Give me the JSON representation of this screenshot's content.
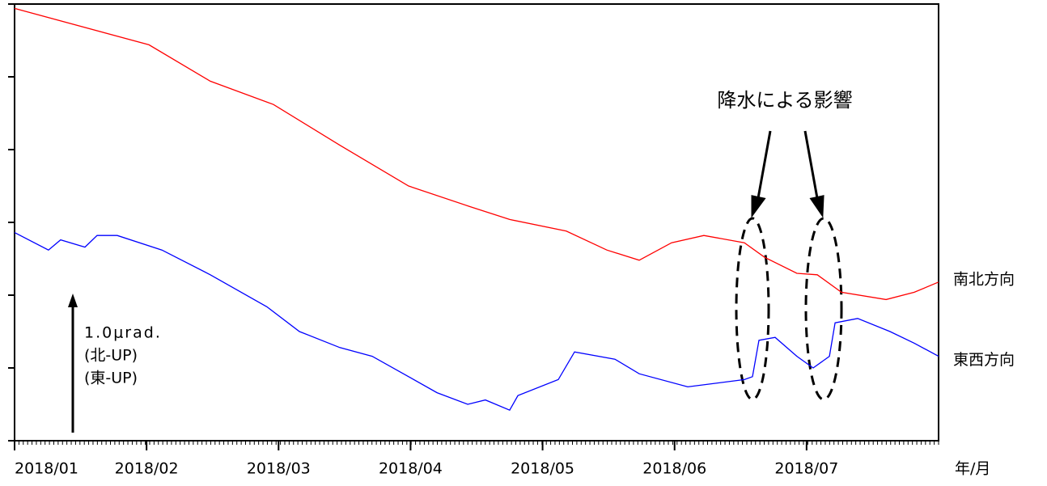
{
  "chart_data": {
    "type": "line",
    "xlabel": "年/月",
    "xlim": [
      1,
      8
    ],
    "ylim": [
      0,
      3
    ],
    "xticks": [
      {
        "value": 1,
        "label": "2018/01"
      },
      {
        "value": 2,
        "label": "2018/02"
      },
      {
        "value": 3,
        "label": "2018/03"
      },
      {
        "value": 4,
        "label": "2018/04"
      },
      {
        "value": 5,
        "label": "2018/05"
      },
      {
        "value": 6,
        "label": "2018/06"
      },
      {
        "value": 7,
        "label": "2018/07"
      }
    ],
    "yticks": [
      0,
      0.5,
      1,
      1.5,
      2,
      2.5,
      3
    ],
    "series": [
      {
        "name": "南北方向",
        "color": "#ff0000",
        "label_color": "#ff0000",
        "x": [
          1.0,
          2.018,
          2.483,
          2.961,
          3.464,
          3.985,
          4.445,
          4.751,
          5.18,
          5.487,
          5.732,
          5.977,
          6.222,
          6.529,
          6.682,
          6.927,
          7.081,
          7.264,
          7.602,
          7.816,
          8.0
        ],
        "values": [
          2.97,
          2.72,
          2.47,
          2.31,
          2.03,
          1.75,
          1.61,
          1.52,
          1.44,
          1.31,
          1.24,
          1.36,
          1.41,
          1.36,
          1.26,
          1.15,
          1.14,
          1.02,
          0.97,
          1.02,
          1.09
        ]
      },
      {
        "name": "東西方向",
        "color": "#0000ff",
        "label_color": "#0070c0",
        "x": [
          1.0,
          1.257,
          1.349,
          1.533,
          1.625,
          1.778,
          2.116,
          2.483,
          2.912,
          3.158,
          3.464,
          3.709,
          3.985,
          4.2,
          4.433,
          4.567,
          4.751,
          4.813,
          5.119,
          5.242,
          5.548,
          5.732,
          6.1,
          6.529,
          6.59,
          6.639,
          6.762,
          6.927,
          7.05,
          7.173,
          7.216,
          7.387,
          7.632,
          7.816,
          8.0
        ],
        "values": [
          1.43,
          1.31,
          1.38,
          1.33,
          1.41,
          1.41,
          1.31,
          1.14,
          0.92,
          0.75,
          0.64,
          0.58,
          0.44,
          0.33,
          0.25,
          0.28,
          0.21,
          0.31,
          0.42,
          0.61,
          0.56,
          0.46,
          0.37,
          0.42,
          0.44,
          0.69,
          0.71,
          0.58,
          0.5,
          0.58,
          0.81,
          0.84,
          0.75,
          0.67,
          0.58
        ]
      }
    ],
    "annotations": {
      "rain": "降水による影響",
      "scale": [
        "1.0μrad.",
        "(北-UP)",
        "(東-UP)"
      ]
    }
  }
}
